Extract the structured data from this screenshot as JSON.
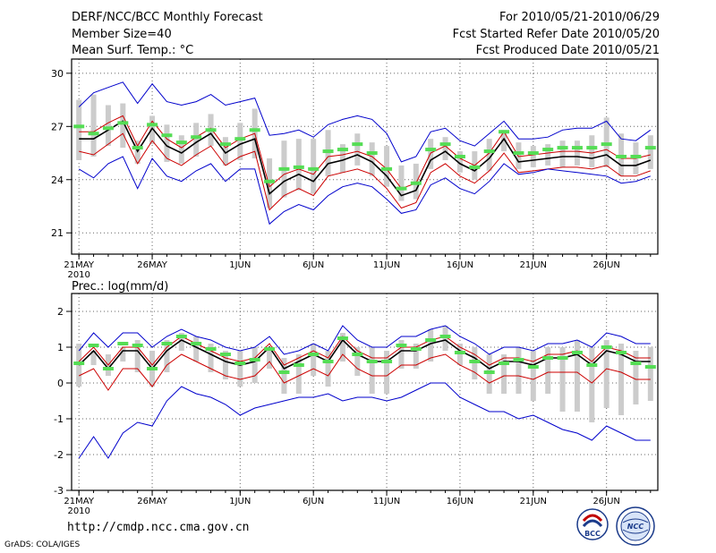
{
  "header": {
    "title": "DERF/NCC/BCC Monthly Forecast",
    "member_size": "Member Size=40",
    "variable": "Mean Surf. Temp.: °C",
    "forecast_period": "For 2010/05/21-2010/06/29",
    "fcst_started": "Fcst Started Refer Date 2010/05/20",
    "fcst_produced": "Fcst Produced Date 2010/05/21"
  },
  "footer": {
    "url": "http://cmdp.ncc.cma.gov.cn",
    "grads": "GrADS: COLA/IGES",
    "logo_bcc": "BCC",
    "logo_ncc": "NCC"
  },
  "colors": {
    "ensemble_mean": "#000000",
    "spread_inner": "#cc0000",
    "spread_outer": "#0000cc",
    "member_box": "#cccccc",
    "median_mark": "#55dd55"
  },
  "chart_data": [
    {
      "type": "line",
      "title": "Mean Surf. Temp.: °C",
      "ylim": [
        19.8,
        30.8
      ],
      "yticks": [
        21,
        24,
        27,
        30
      ],
      "ytick_labels": [
        "21",
        "24",
        "27",
        "30"
      ],
      "xticks": [
        1,
        6,
        12,
        17,
        22,
        27,
        32,
        37
      ],
      "xtick_labels": [
        "21MAY",
        "26MAY",
        "1JUN",
        "6JUN",
        "11JUN",
        "16JUN",
        "21JUN",
        "26JUN"
      ],
      "xtick_sublabel": "2010",
      "x": [
        1,
        2,
        3,
        4,
        5,
        6,
        7,
        8,
        9,
        10,
        11,
        12,
        13,
        14,
        15,
        16,
        17,
        18,
        19,
        20,
        21,
        22,
        23,
        24,
        25,
        26,
        27,
        28,
        29,
        30,
        31,
        32,
        33,
        34,
        35,
        36,
        37,
        38,
        39,
        40
      ],
      "series": [
        {
          "name": "ensemble mean",
          "values": [
            26.3,
            26.3,
            26.8,
            27.3,
            25.6,
            26.9,
            25.9,
            25.5,
            26.1,
            26.6,
            25.5,
            26.0,
            26.3,
            23.2,
            23.9,
            24.3,
            23.9,
            24.9,
            25.1,
            25.4,
            25.0,
            24.2,
            23.1,
            23.4,
            25.1,
            25.6,
            24.9,
            24.5,
            25.2,
            26.3,
            25.0,
            25.1,
            25.2,
            25.3,
            25.3,
            25.2,
            25.4,
            24.8,
            24.8,
            25.1
          ]
        },
        {
          "name": "upper inner",
          "values": [
            26.7,
            26.7,
            27.2,
            27.6,
            25.9,
            27.3,
            26.3,
            25.8,
            26.4,
            26.9,
            25.8,
            26.3,
            26.6,
            23.6,
            24.3,
            24.6,
            24.3,
            25.3,
            25.4,
            25.6,
            25.3,
            24.6,
            23.5,
            23.8,
            25.5,
            25.9,
            25.2,
            24.8,
            25.5,
            26.7,
            25.3,
            25.4,
            25.5,
            25.6,
            25.6,
            25.5,
            25.7,
            25.2,
            25.2,
            25.4
          ]
        },
        {
          "name": "lower inner",
          "values": [
            25.6,
            25.4,
            26.0,
            26.6,
            24.9,
            26.2,
            25.2,
            24.8,
            25.4,
            25.9,
            24.8,
            25.3,
            25.6,
            22.3,
            23.1,
            23.5,
            23.1,
            24.2,
            24.4,
            24.6,
            24.3,
            23.5,
            22.4,
            22.7,
            24.4,
            24.9,
            24.2,
            23.8,
            24.5,
            25.5,
            24.4,
            24.5,
            24.6,
            24.7,
            24.7,
            24.6,
            24.8,
            24.2,
            24.2,
            24.5
          ]
        },
        {
          "name": "upper outer",
          "values": [
            28.1,
            28.9,
            29.2,
            29.5,
            28.3,
            29.4,
            28.4,
            28.2,
            28.4,
            28.8,
            28.2,
            28.4,
            28.6,
            26.5,
            26.6,
            26.8,
            26.4,
            27.1,
            27.4,
            27.6,
            27.4,
            26.6,
            25.0,
            25.3,
            26.7,
            26.9,
            26.2,
            25.9,
            26.6,
            27.3,
            26.3,
            26.3,
            26.4,
            26.8,
            26.9,
            26.9,
            27.3,
            26.3,
            26.2,
            26.8
          ]
        },
        {
          "name": "lower outer",
          "values": [
            24.6,
            24.1,
            24.9,
            25.3,
            23.5,
            25.2,
            24.2,
            23.9,
            24.5,
            24.9,
            23.9,
            24.6,
            24.6,
            21.5,
            22.2,
            22.6,
            22.3,
            23.1,
            23.6,
            23.8,
            23.6,
            22.9,
            22.1,
            22.3,
            23.7,
            24.1,
            23.5,
            23.2,
            23.9,
            24.9,
            24.3,
            24.4,
            24.6,
            24.5,
            24.4,
            24.3,
            24.2,
            23.8,
            23.9,
            24.2
          ]
        },
        {
          "name": "ensemble median",
          "values": [
            27.0,
            26.6,
            26.9,
            27.2,
            25.8,
            27.1,
            26.5,
            26.1,
            26.4,
            26.8,
            26.0,
            26.3,
            26.8,
            23.9,
            24.6,
            24.7,
            24.6,
            25.6,
            25.7,
            26.0,
            25.5,
            24.6,
            23.5,
            23.8,
            25.7,
            26.0,
            25.3,
            24.7,
            25.6,
            26.7,
            25.5,
            25.5,
            25.7,
            25.8,
            25.8,
            25.8,
            26.0,
            25.3,
            25.3,
            25.8
          ]
        }
      ],
      "boxes": {
        "upper": [
          28.5,
          28.8,
          28.2,
          28.3,
          26.2,
          27.6,
          27.1,
          26.5,
          27.2,
          27.7,
          26.4,
          27.2,
          28.0,
          25.2,
          26.2,
          26.3,
          26.3,
          26.8,
          26.0,
          26.6,
          26.1,
          25.9,
          24.8,
          24.9,
          26.3,
          26.4,
          25.6,
          25.6,
          26.3,
          26.8,
          26.1,
          25.9,
          26.0,
          26.2,
          26.2,
          26.5,
          27.5,
          26.6,
          26.1,
          26.5
        ],
        "lower": [
          25.1,
          25.3,
          25.9,
          25.8,
          24.9,
          26.0,
          25.0,
          24.9,
          25.3,
          25.9,
          24.8,
          25.1,
          25.2,
          22.4,
          23.0,
          23.4,
          23.2,
          24.2,
          24.4,
          24.8,
          24.2,
          23.6,
          22.8,
          22.9,
          24.6,
          25.1,
          24.4,
          24.0,
          24.5,
          25.6,
          24.6,
          24.7,
          24.8,
          24.7,
          24.8,
          24.7,
          24.7,
          24.2,
          24.3,
          24.6
        ]
      }
    },
    {
      "type": "line",
      "title": "Prec.: log(mm/d)",
      "ylim": [
        -3,
        2.5
      ],
      "yticks": [
        -3,
        -2,
        -1,
        0,
        1,
        2
      ],
      "ytick_labels": [
        "-3",
        "-2",
        "-1",
        "0",
        "1",
        "2"
      ],
      "xticks": [
        1,
        6,
        12,
        17,
        22,
        27,
        32,
        37
      ],
      "xtick_labels": [
        "21MAY",
        "26MAY",
        "1JUN",
        "6JUN",
        "11JUN",
        "16JUN",
        "21JUN",
        "26JUN"
      ],
      "xtick_sublabel": "2010",
      "x": [
        1,
        2,
        3,
        4,
        5,
        6,
        7,
        8,
        9,
        10,
        11,
        12,
        13,
        14,
        15,
        16,
        17,
        18,
        19,
        20,
        21,
        22,
        23,
        24,
        25,
        26,
        27,
        28,
        29,
        30,
        31,
        32,
        33,
        34,
        35,
        36,
        37,
        38,
        39,
        40
      ],
      "series": [
        {
          "name": "ensemble mean",
          "values": [
            0.5,
            0.9,
            0.4,
            0.9,
            0.9,
            0.4,
            0.9,
            1.2,
            1.0,
            0.8,
            0.6,
            0.5,
            0.6,
            1.0,
            0.4,
            0.6,
            0.8,
            0.6,
            1.2,
            0.8,
            0.6,
            0.6,
            0.9,
            0.9,
            1.1,
            1.2,
            0.9,
            0.7,
            0.4,
            0.6,
            0.6,
            0.5,
            0.7,
            0.7,
            0.8,
            0.5,
            0.9,
            0.8,
            0.6,
            0.6
          ]
        },
        {
          "name": "upper inner",
          "values": [
            0.6,
            1.0,
            0.5,
            1.0,
            1.0,
            0.5,
            1.0,
            1.3,
            1.1,
            0.9,
            0.7,
            0.6,
            0.7,
            1.1,
            0.5,
            0.7,
            0.9,
            0.7,
            1.3,
            0.9,
            0.7,
            0.7,
            1.0,
            1.0,
            1.2,
            1.3,
            1.0,
            0.8,
            0.5,
            0.7,
            0.7,
            0.6,
            0.8,
            0.8,
            0.9,
            0.6,
            1.0,
            0.9,
            0.7,
            0.7
          ]
        },
        {
          "name": "lower inner",
          "values": [
            0.2,
            0.4,
            -0.2,
            0.4,
            0.4,
            -0.1,
            0.5,
            0.8,
            0.6,
            0.4,
            0.2,
            0.1,
            0.2,
            0.6,
            0.0,
            0.2,
            0.4,
            0.2,
            0.8,
            0.4,
            0.2,
            0.2,
            0.5,
            0.5,
            0.7,
            0.8,
            0.5,
            0.3,
            0.0,
            0.2,
            0.2,
            0.1,
            0.3,
            0.3,
            0.3,
            0.0,
            0.4,
            0.3,
            0.1,
            0.1
          ]
        },
        {
          "name": "upper outer",
          "values": [
            0.9,
            1.4,
            1.0,
            1.4,
            1.4,
            1.0,
            1.3,
            1.5,
            1.3,
            1.2,
            1.0,
            0.9,
            1.0,
            1.3,
            0.8,
            0.9,
            1.1,
            0.9,
            1.6,
            1.2,
            1.0,
            1.0,
            1.3,
            1.3,
            1.5,
            1.6,
            1.3,
            1.1,
            0.8,
            1.0,
            1.0,
            0.9,
            1.1,
            1.1,
            1.2,
            1.0,
            1.4,
            1.3,
            1.1,
            1.1
          ]
        },
        {
          "name": "lower outer",
          "values": [
            -2.1,
            -1.5,
            -2.1,
            -1.4,
            -1.1,
            -1.2,
            -0.5,
            -0.1,
            -0.3,
            -0.4,
            -0.6,
            -0.9,
            -0.7,
            -0.6,
            -0.5,
            -0.4,
            -0.4,
            -0.3,
            -0.5,
            -0.4,
            -0.4,
            -0.5,
            -0.4,
            -0.2,
            0.0,
            0.0,
            -0.4,
            -0.6,
            -0.8,
            -0.8,
            -1.0,
            -0.9,
            -1.1,
            -1.3,
            -1.4,
            -1.6,
            -1.2,
            -1.4,
            -1.6,
            -1.6
          ]
        },
        {
          "name": "ensemble median",
          "values": [
            0.55,
            1.05,
            0.4,
            1.1,
            1.05,
            0.4,
            1.1,
            1.3,
            1.1,
            0.95,
            0.8,
            0.55,
            0.65,
            0.95,
            0.3,
            0.5,
            0.8,
            0.6,
            1.25,
            0.8,
            0.6,
            0.6,
            1.05,
            0.95,
            1.2,
            1.3,
            0.85,
            0.6,
            0.3,
            0.55,
            0.65,
            0.45,
            0.7,
            0.7,
            0.85,
            0.5,
            1.0,
            0.85,
            0.55,
            0.45
          ]
        }
      ],
      "boxes": {
        "upper": [
          1.1,
          0.9,
          0.8,
          1.0,
          1.2,
          0.9,
          1.2,
          1.4,
          1.3,
          1.1,
          0.9,
          0.9,
          1.0,
          1.0,
          0.7,
          0.8,
          1.1,
          0.9,
          1.4,
          1.0,
          1.0,
          0.9,
          1.2,
          1.1,
          1.5,
          1.6,
          1.1,
          1.0,
          0.8,
          0.8,
          1.0,
          0.9,
          1.0,
          1.0,
          1.2,
          1.0,
          1.2,
          1.1,
          0.9,
          1.0
        ],
        "lower": [
          -0.1,
          0.5,
          0.2,
          0.6,
          0.3,
          -0.1,
          0.3,
          0.9,
          0.6,
          0.3,
          0.1,
          -0.1,
          0.0,
          0.4,
          -0.3,
          -0.3,
          0.2,
          -0.1,
          0.6,
          0.2,
          -0.3,
          -0.3,
          0.4,
          0.4,
          0.6,
          0.9,
          0.5,
          0.1,
          -0.3,
          -0.3,
          -0.3,
          -0.5,
          -0.3,
          -0.8,
          -0.8,
          -1.1,
          -0.7,
          -0.9,
          -0.6,
          -0.5
        ]
      }
    }
  ]
}
